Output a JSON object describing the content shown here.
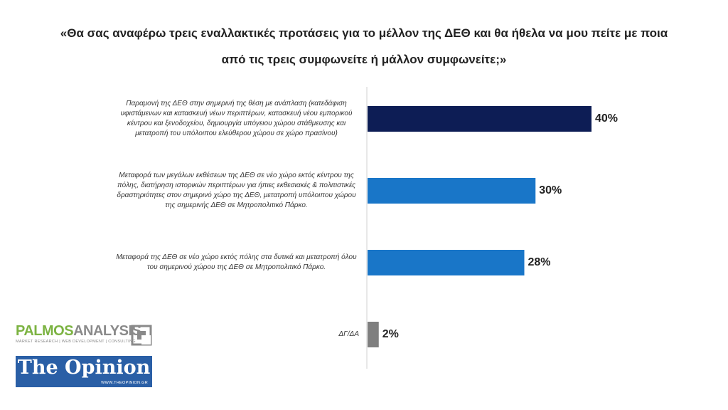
{
  "title": "«Θα σας αναφέρω τρεις εναλλακτικές προτάσεις για το μέλλον της ΔΕΘ και θα ήθελα να μου πείτε με ποια από τις τρεις συμφωνείτε ή μάλλον συμφωνείτε;»",
  "chart_data": {
    "type": "bar",
    "orientation": "horizontal",
    "title": "«Θα σας αναφέρω τρεις εναλλακτικές προτάσεις για το μέλλον της ΔΕΘ και θα ήθελα να μου πείτε με ποια από τις τρεις συμφωνείτε ή μάλλον συμφωνείτε;»",
    "categories": [
      "Παραμονή της ΔΕΘ στην σημερινή της θέση με ανάπλαση (κατεδάφιση υφιστάμενων και κατασκευή νέων περιπτέρων, κατασκευή νέου εμπορικού κέντρου και ξενοδοχείου, δημιουργία υπόγειου χώρου στάθμευσης και μετατροπή του υπόλοιπου ελεύθερου χώρου σε χώρο πρασίνου)",
      "Μεταφορά των μεγάλων εκθέσεων της ΔΕΘ σε νέο χώρο εκτός κέντρου της πόλης, διατήρηση ιστορικών περιπτέρων για ήπιες εκθεσιακές & πολιτιστικές δραστηριότητες στον σημερινό χώρο της ΔΕΘ, μετατροπή υπόλοιπου χώρου της σημερινής ΔΕΘ σε Μητροπολιτικό Πάρκο.",
      "Μεταφορά της ΔΕΘ σε νέο χώρο εκτός πόλης στα δυτικά και μετατροπή όλου του σημερινού χώρου της ΔΕΘ σε Μητροπολιτικό Πάρκο.",
      "ΔΓ/ΔΑ"
    ],
    "values": [
      40,
      30,
      28,
      2
    ],
    "value_labels": [
      "40%",
      "30%",
      "28%",
      "2%"
    ],
    "unit": "%",
    "colors": [
      "#0d1d55",
      "#1976c8",
      "#1976c8",
      "#7f7f7f"
    ],
    "xlim": [
      0,
      40
    ],
    "grid": false,
    "legend": "none"
  },
  "logos": {
    "palmos": {
      "name_part1": "PALMOS",
      "name_part2": "ANALYSIS",
      "tagline": "MARKET RESEARCH | WEB DEVELOPMENT | CONSULTING",
      "icon": "palmos-square-logo-icon"
    },
    "opinion": {
      "name": "The Opinion",
      "url": "WWW.THEOPINION.GR"
    }
  }
}
